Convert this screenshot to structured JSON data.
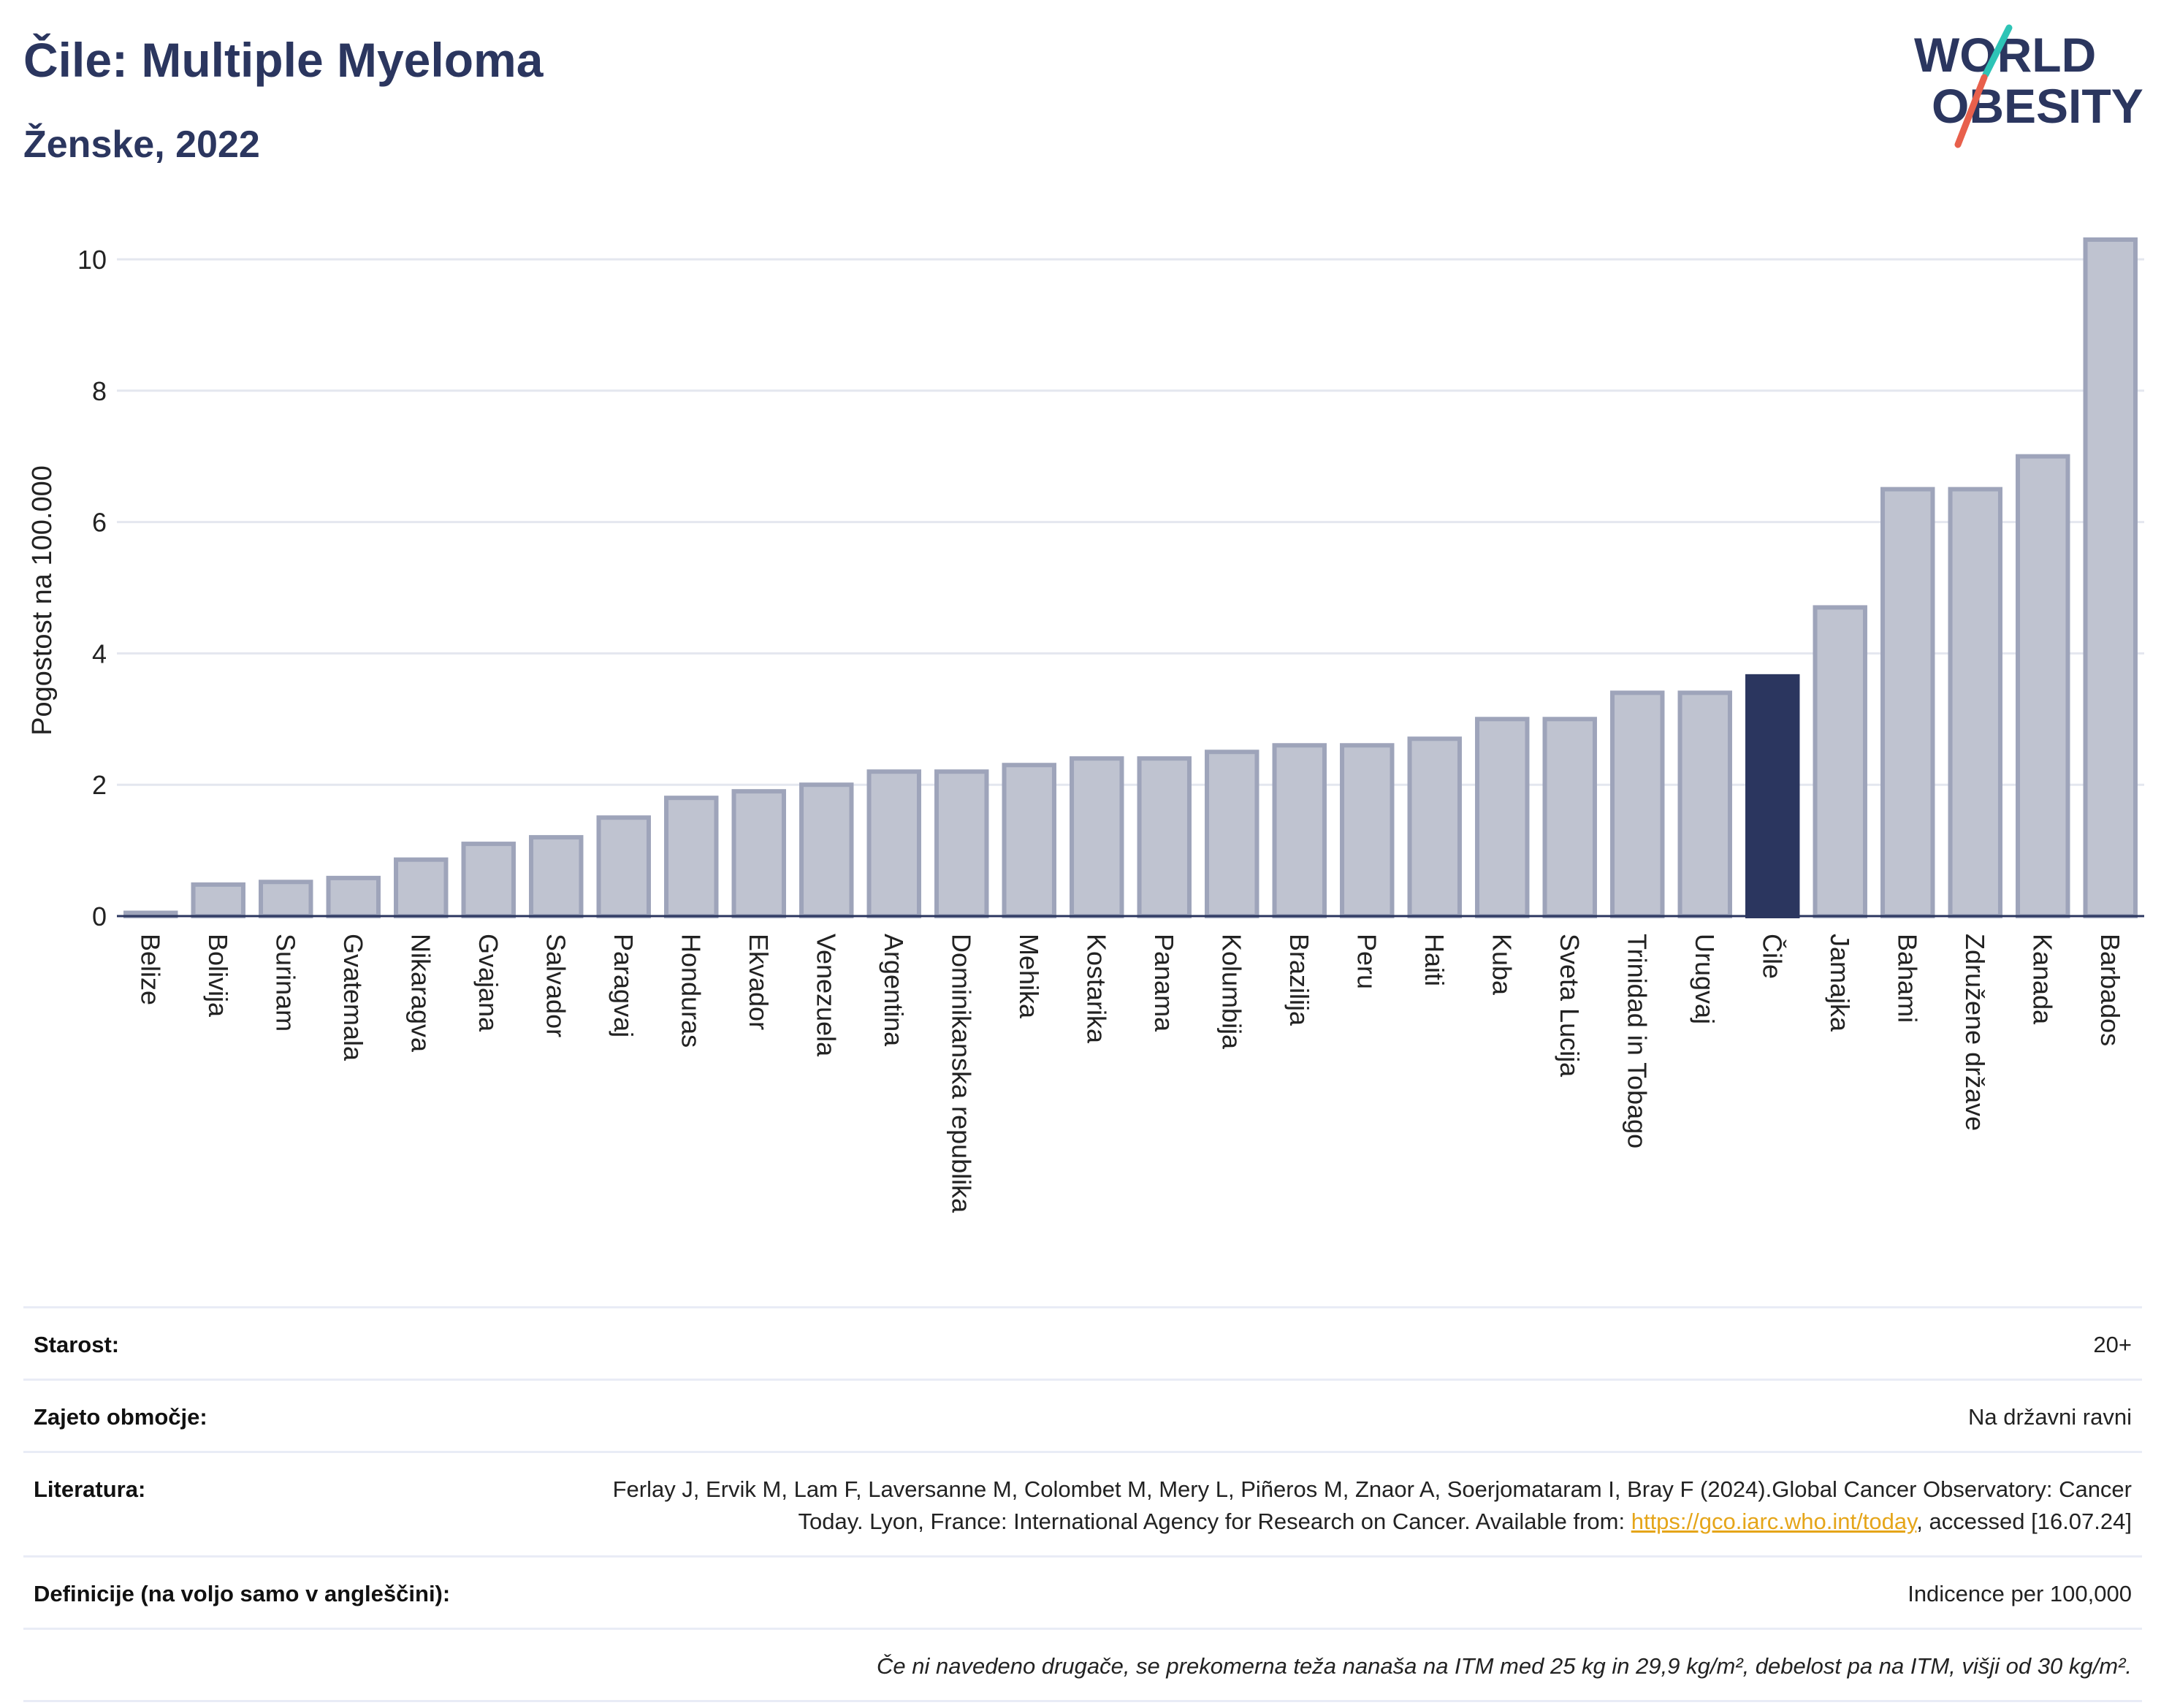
{
  "header": {
    "title": "Čile: Multiple Myeloma",
    "subtitle": "Ženske, 2022"
  },
  "logo": {
    "line1": "WORLD",
    "line2": "OBESITY"
  },
  "colors": {
    "bar": "#bfc3d0",
    "bar_border": "#9ea4ba",
    "highlight": "#2b365f",
    "grid": "#e4e7ef",
    "logo_text": "#2b365f",
    "logo_teal": "#2ec4b6",
    "logo_coral": "#e8604c"
  },
  "chart_data": {
    "type": "bar",
    "ylabel": "Pogostost na 100.000",
    "xlabel": "",
    "ylim": [
      0,
      10.5
    ],
    "yticks": [
      0,
      2,
      4,
      6,
      8,
      10
    ],
    "highlight": "Čile",
    "grid": true,
    "categories": [
      "Belize",
      "Bolivija",
      "Surinam",
      "Gvatemala",
      "Nikaragva",
      "Gvajana",
      "Salvador",
      "Paragvaj",
      "Honduras",
      "Ekvador",
      "Venezuela",
      "Argentina",
      "Dominikanska republika",
      "Mehika",
      "Kostarika",
      "Panama",
      "Kolumbija",
      "Brazilija",
      "Peru",
      "Haiti",
      "Kuba",
      "Sveta Lucija",
      "Trinidad in Tobago",
      "Urugvaj",
      "Čile",
      "Jamajka",
      "Bahami",
      "Združene države",
      "Kanada",
      "Barbados"
    ],
    "values": [
      0.05,
      0.48,
      0.52,
      0.58,
      0.86,
      1.1,
      1.2,
      1.5,
      1.8,
      1.9,
      2.0,
      2.2,
      2.2,
      2.3,
      2.4,
      2.4,
      2.5,
      2.6,
      2.6,
      2.7,
      3.0,
      3.0,
      3.4,
      3.4,
      3.65,
      4.7,
      6.5,
      6.5,
      7.0,
      10.3
    ]
  },
  "info": {
    "age_label": "Starost:",
    "age_value": "20+",
    "coverage_label": "Zajeto območje:",
    "coverage_value": "Na državni ravni",
    "reference_label": "Literatura:",
    "reference_text": "Ferlay J, Ervik M, Lam F, Laversanne M, Colombet M, Mery L, Piñeros M, Znaor A, Soerjomataram I, Bray F (2024).Global Cancer Observatory: Cancer Today. Lyon, France: International Agency for Research on Cancer. Available from: ",
    "reference_link": "https://gco.iarc.who.int/today",
    "reference_suffix": ", accessed [16.07.24]",
    "definitions_label": "Definicije (na voljo samo v angleščini):",
    "definitions_value": "Indicence per 100,000",
    "note": "Če ni navedeno drugače, se prekomerna teža nanaša na ITM med 25 kg in 29,9 kg/m², debelost pa na ITM, višji od 30 kg/m²."
  }
}
